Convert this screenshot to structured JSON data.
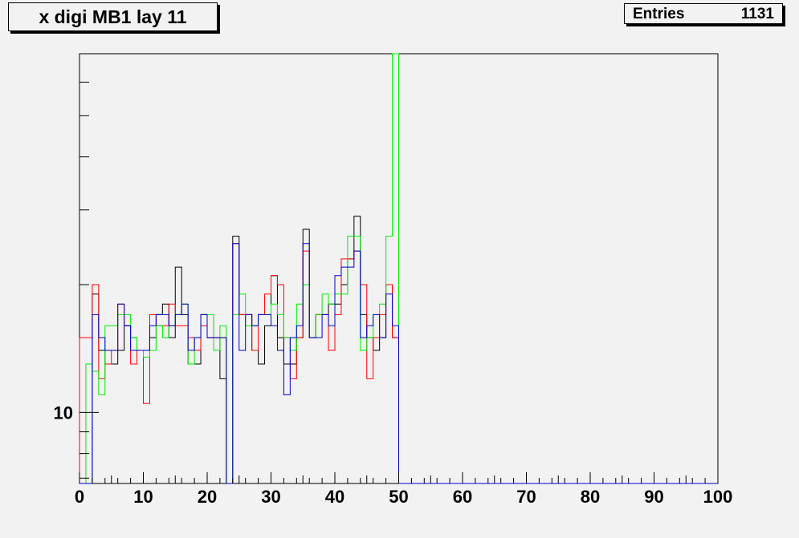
{
  "chart_data": {
    "type": "histogram",
    "title": "x digi MB1 lay 11",
    "stats": {
      "label": "Entries",
      "value": "1131"
    },
    "x_range": [
      0,
      100
    ],
    "x_ticks": [
      "0",
      "10",
      "20",
      "30",
      "40",
      "50",
      "60",
      "70",
      "80",
      "90",
      "100"
    ],
    "y_scale": "log",
    "y_ticks": [
      "10"
    ],
    "y_range": [
      6.8,
      70
    ],
    "bins": 100,
    "series": [
      {
        "color": "#000000",
        "values": [
          0,
          0,
          19,
          14,
          13,
          13,
          14,
          16,
          15,
          14,
          14,
          15,
          17,
          18,
          15,
          22,
          17,
          13,
          13,
          17,
          15,
          15,
          12,
          0,
          26,
          17,
          17,
          14,
          13,
          16,
          21,
          15,
          13,
          13,
          15,
          27,
          15,
          17,
          17,
          18,
          18,
          20,
          23,
          29,
          17,
          15,
          14,
          15,
          20,
          15,
          0,
          0,
          0,
          0,
          0,
          0,
          0,
          0,
          0,
          0,
          0,
          0,
          0,
          0,
          0,
          0,
          0,
          0,
          0,
          0,
          0,
          0,
          0,
          0,
          0,
          0,
          0,
          0,
          0,
          0,
          0,
          0,
          0,
          0,
          0,
          0,
          0,
          0,
          0,
          0,
          0,
          0,
          0,
          0,
          0,
          0,
          0,
          0,
          0,
          0
        ]
      },
      {
        "color": "#ff0000",
        "values": [
          15,
          15,
          20,
          12,
          13,
          14,
          18,
          16,
          13,
          14,
          10.5,
          17,
          16,
          16,
          18,
          16,
          16,
          15,
          14,
          16,
          15,
          15,
          15,
          0,
          25,
          17,
          17,
          14,
          17,
          19,
          21,
          20,
          15,
          12,
          15,
          24,
          15,
          17,
          17,
          14,
          17,
          23,
          23,
          24,
          20,
          12,
          15,
          17,
          20,
          15,
          0,
          0,
          0,
          0,
          0,
          0,
          0,
          0,
          0,
          0,
          0,
          0,
          0,
          0,
          0,
          0,
          0,
          0,
          0,
          0,
          0,
          0,
          0,
          0,
          0,
          0,
          0,
          0,
          0,
          0,
          0,
          0,
          0,
          0,
          0,
          0,
          0,
          0,
          0,
          0,
          0,
          0,
          0,
          0,
          0,
          0,
          0,
          0,
          0,
          0
        ]
      },
      {
        "color": "#00ee00",
        "values": [
          0,
          13,
          12.5,
          11,
          16,
          16,
          17,
          17,
          15,
          14,
          13.5,
          14,
          16,
          15,
          16,
          17,
          18,
          13,
          15,
          17,
          17,
          14,
          16,
          0,
          17,
          19,
          16,
          16,
          17,
          17,
          18,
          17,
          15,
          14,
          18,
          20,
          15,
          17,
          19,
          18,
          19,
          19,
          26,
          26,
          14,
          15,
          17,
          18,
          26,
          70,
          0,
          0,
          0,
          0,
          0,
          0,
          0,
          0,
          0,
          0,
          0,
          0,
          0,
          0,
          0,
          0,
          0,
          0,
          0,
          0,
          0,
          0,
          0,
          0,
          0,
          0,
          0,
          0,
          0,
          0,
          0,
          0,
          0,
          0,
          0,
          0,
          0,
          0,
          0,
          0,
          0,
          0,
          0,
          0,
          0,
          0,
          0,
          0,
          0,
          0
        ]
      },
      {
        "color": "#0000cc",
        "values": [
          0,
          0,
          17,
          15,
          14,
          14,
          18,
          16,
          14,
          14,
          14,
          16,
          17,
          17,
          16,
          17,
          18,
          14,
          15,
          17,
          15,
          15,
          15,
          0,
          25,
          14,
          17,
          16,
          17,
          17,
          16,
          14,
          11,
          15,
          16,
          25,
          15,
          15,
          17,
          16,
          21,
          22,
          22,
          24,
          15,
          16,
          17,
          15,
          19,
          16,
          0,
          0,
          0,
          0,
          0,
          0,
          0,
          0,
          0,
          0,
          0,
          0,
          0,
          0,
          0,
          0,
          0,
          0,
          0,
          0,
          0,
          0,
          0,
          0,
          0,
          0,
          0,
          0,
          0,
          0,
          0,
          0,
          0,
          0,
          0,
          0,
          0,
          0,
          0,
          0,
          0,
          0,
          0,
          0,
          0,
          0,
          0,
          0,
          0,
          0
        ]
      }
    ]
  }
}
